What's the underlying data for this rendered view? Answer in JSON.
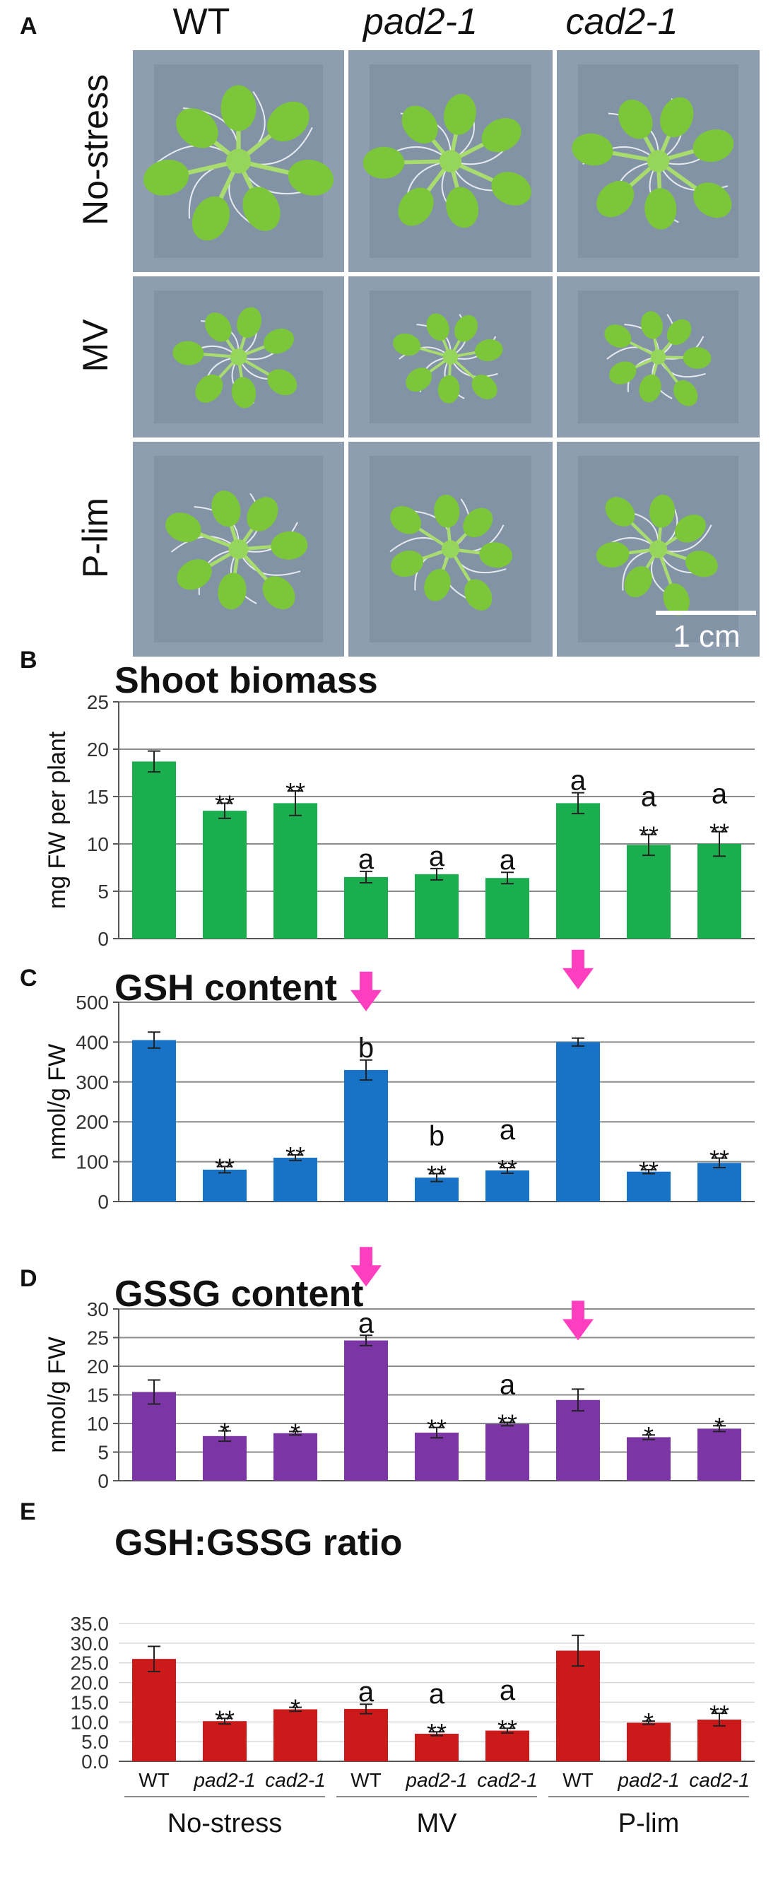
{
  "panel_a": {
    "letter": "A",
    "genotypes": [
      "WT",
      "pad2-1",
      "cad2-1"
    ],
    "conditions": [
      "No-stress",
      "MV",
      "P-lim"
    ],
    "scale_bar_label": "1 cm",
    "colors": {
      "background": "#8f9db0",
      "leaf": "#7cc63a",
      "root": "#e6eaee"
    }
  },
  "chart_data": [
    {
      "type": "bar",
      "letter": "B",
      "title": "Shoot biomass",
      "xlabel": "",
      "ylabel": "mg FW per plant",
      "ylim": [
        0,
        25
      ],
      "yticks": [
        "0",
        "5",
        "10",
        "15",
        "20",
        "25"
      ],
      "grid": true,
      "color": "#1aae4f",
      "values": [
        18.7,
        13.5,
        14.3,
        6.5,
        6.8,
        6.4,
        14.3,
        9.9,
        10.0
      ],
      "errors": [
        1.1,
        0.8,
        1.3,
        0.6,
        0.6,
        0.6,
        1.1,
        1.1,
        1.3
      ],
      "annotations": [
        "",
        "**",
        "**",
        "a",
        "a",
        "a",
        "a",
        "a\n**",
        "a\n**"
      ],
      "arrows": []
    },
    {
      "type": "bar",
      "letter": "C",
      "title": "GSH content",
      "xlabel": "",
      "ylabel": "nmol/g FW",
      "ylim": [
        0,
        500
      ],
      "yticks": [
        "0",
        "100",
        "200",
        "300",
        "400",
        "500"
      ],
      "grid": true,
      "color": "#1873c7",
      "values": [
        405,
        80,
        110,
        330,
        60,
        78,
        400,
        75,
        97
      ],
      "errors": [
        20,
        8,
        7,
        25,
        10,
        7,
        10,
        5,
        12
      ],
      "annotations": [
        "",
        "**",
        "**",
        "b",
        "b\n**",
        "a\n**",
        "",
        "**",
        "**"
      ],
      "arrows": [
        3,
        6
      ]
    },
    {
      "type": "bar",
      "letter": "D",
      "title": "GSSG content",
      "xlabel": "",
      "ylabel": "nmol/g FW",
      "ylim": [
        0,
        30
      ],
      "yticks": [
        "0",
        "5",
        "10",
        "15",
        "20",
        "25",
        "30"
      ],
      "grid": true,
      "color": "#7b35a5",
      "values": [
        15.5,
        7.8,
        8.3,
        24.5,
        8.4,
        9.9,
        14.1,
        7.6,
        9.1
      ],
      "errors": [
        2.1,
        0.9,
        0.3,
        0.9,
        0.9,
        0.3,
        1.9,
        0.4,
        0.5
      ],
      "annotations": [
        "",
        "*",
        "*",
        "a",
        "**",
        "a\n**",
        "",
        "*",
        "*"
      ],
      "arrows": [
        3,
        6
      ]
    },
    {
      "type": "bar",
      "letter": "E",
      "title": "GSH:GSSG ratio",
      "xlabel": "",
      "ylabel": "",
      "ylim": [
        0,
        35
      ],
      "yticks": [
        "0.0",
        "5.0",
        "10.0",
        "15.0",
        "20.0",
        "25.0",
        "30.0",
        "35.0"
      ],
      "grid": true,
      "color": "#cc1a1a",
      "values": [
        26.0,
        10.2,
        13.2,
        13.3,
        7.0,
        7.8,
        28.1,
        9.8,
        10.6
      ],
      "errors": [
        3.2,
        0.7,
        0.5,
        1.2,
        0.5,
        0.6,
        3.9,
        0.4,
        1.6
      ],
      "annotations": [
        "",
        "**",
        "*",
        "a",
        "a\n**",
        "a\n**",
        "",
        "*",
        "**"
      ],
      "arrows": [],
      "categories": [
        "WT",
        "pad2-1",
        "cad2-1",
        "WT",
        "pad2-1",
        "cad2-1",
        "WT",
        "pad2-1",
        "cad2-1"
      ],
      "groups": [
        "No-stress",
        "MV",
        "P-lim"
      ]
    }
  ]
}
